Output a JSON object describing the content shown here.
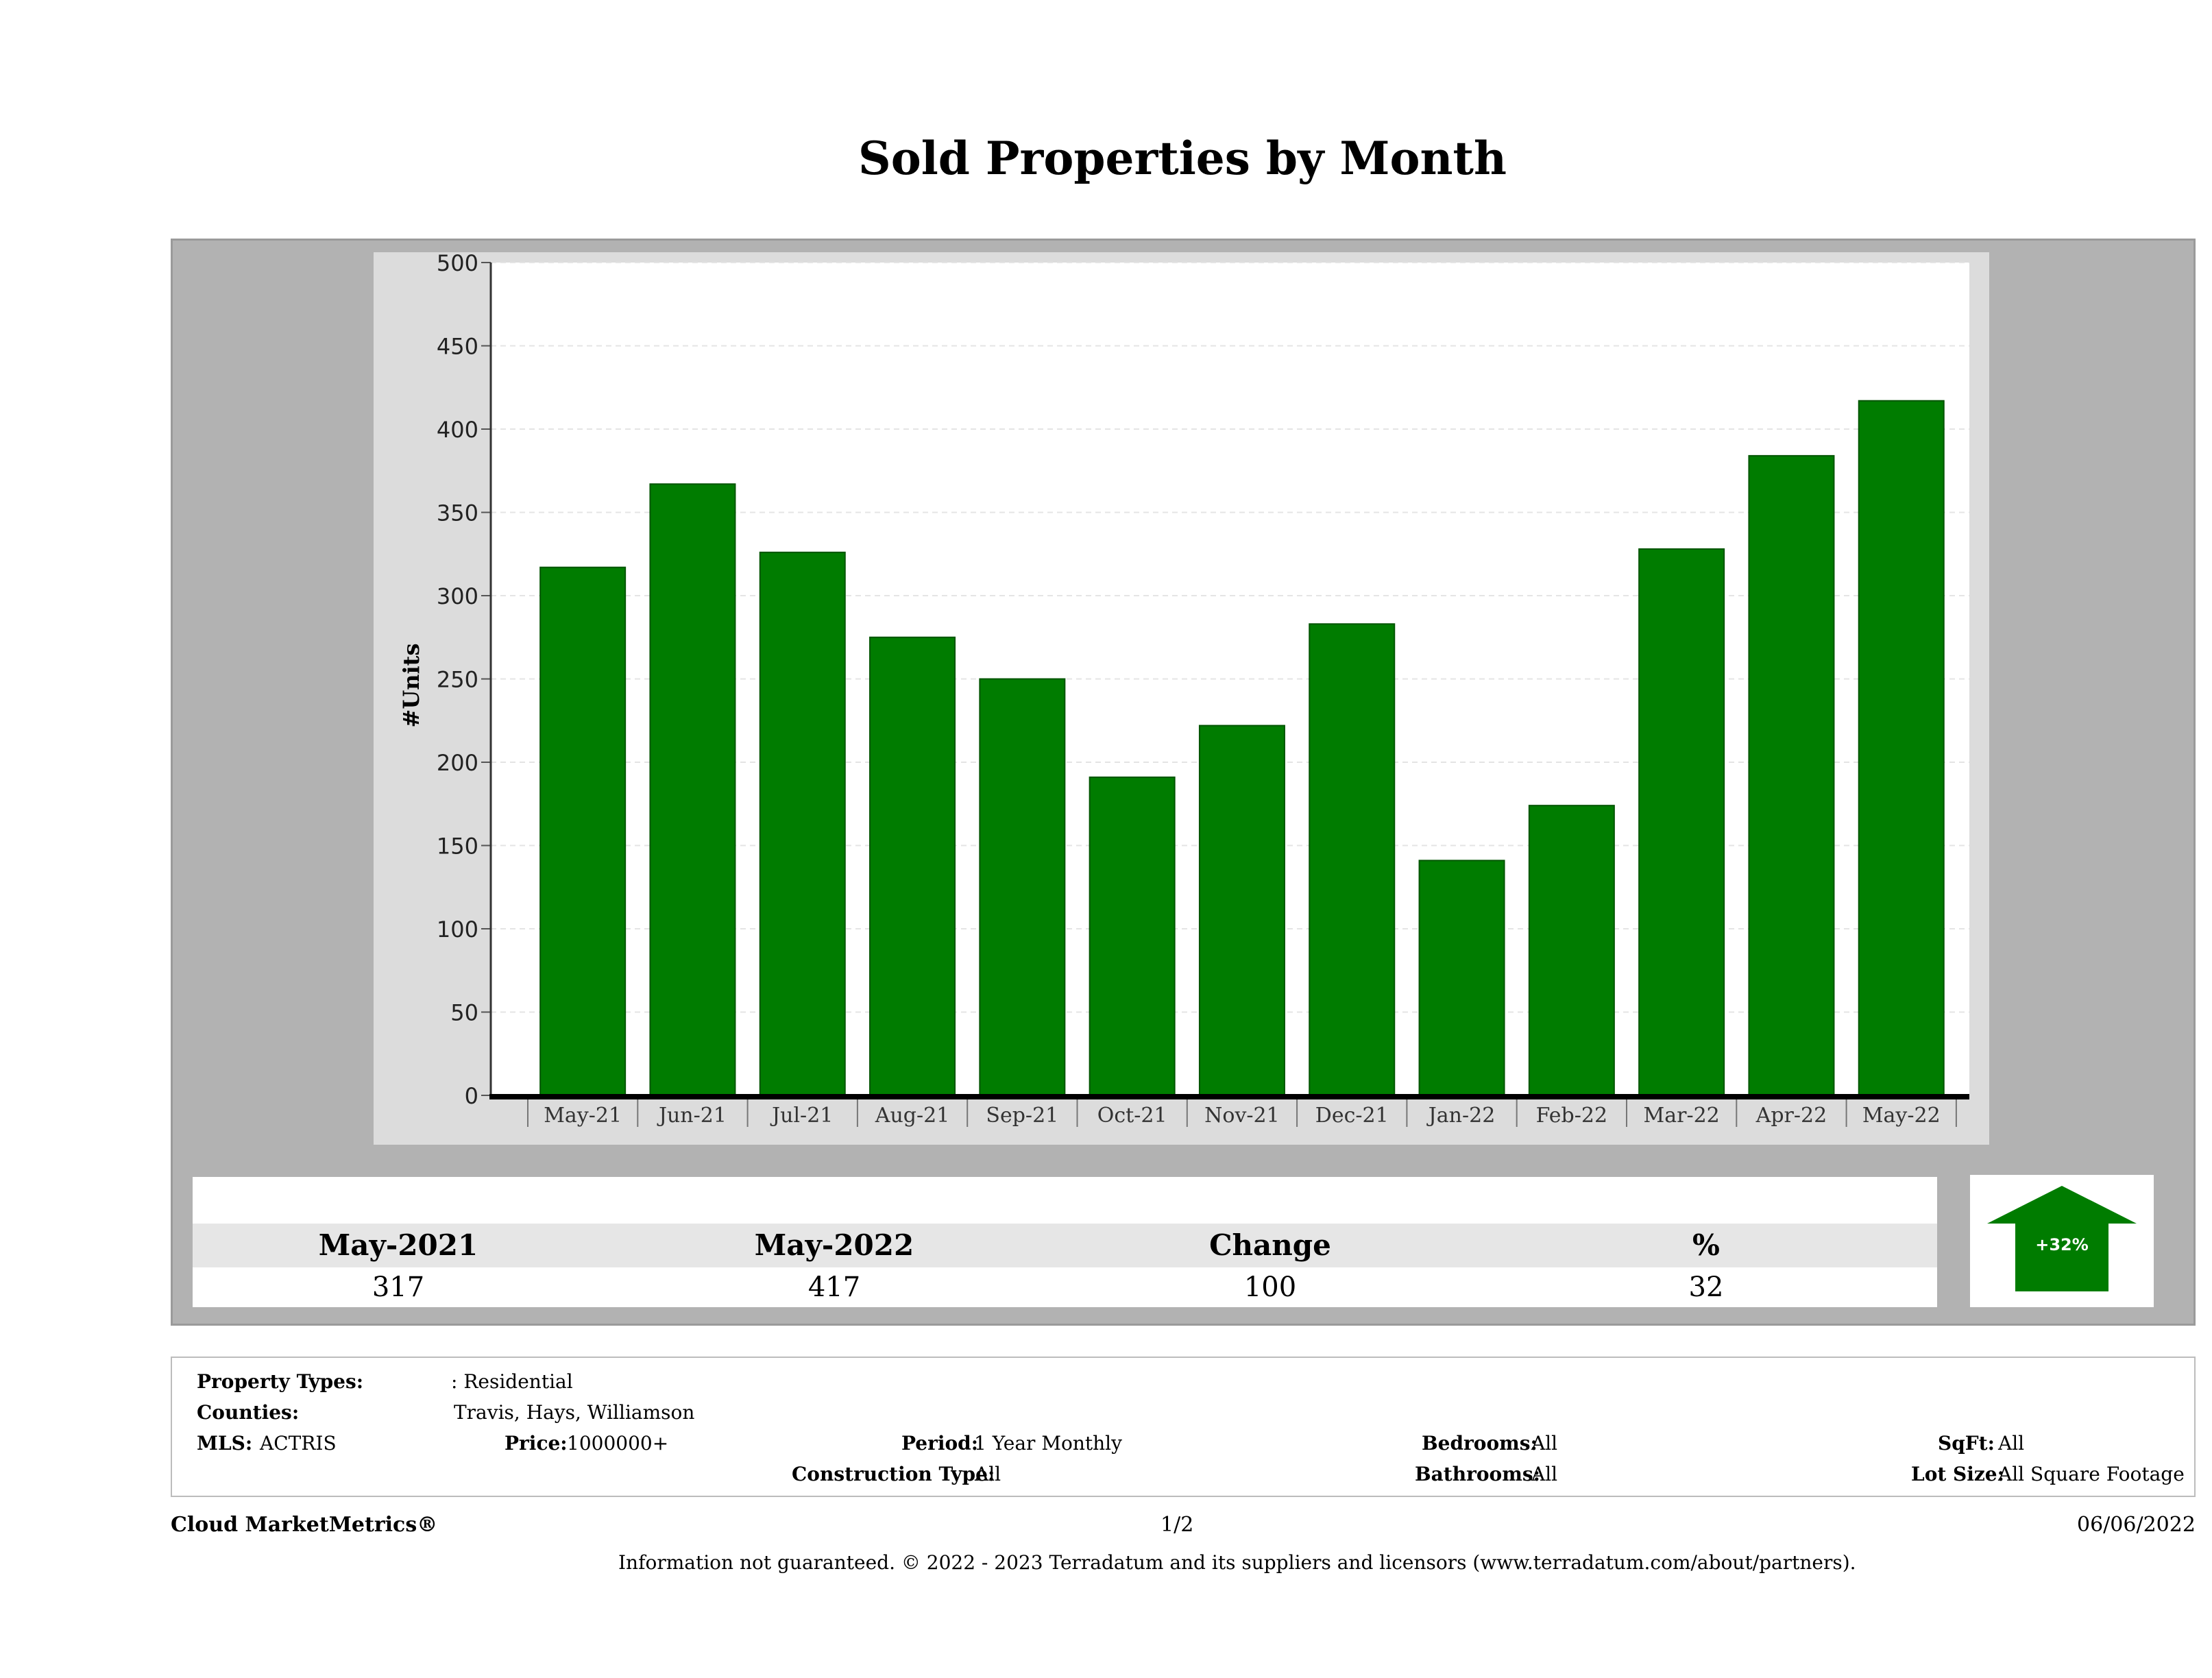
{
  "title": "Sold Properties by Month",
  "chart_data": {
    "type": "bar",
    "categories": [
      "May-21",
      "Jun-21",
      "Jul-21",
      "Aug-21",
      "Sep-21",
      "Oct-21",
      "Nov-21",
      "Dec-21",
      "Jan-22",
      "Feb-22",
      "Mar-22",
      "Apr-22",
      "May-22"
    ],
    "values": [
      317,
      367,
      326,
      275,
      250,
      191,
      222,
      283,
      141,
      174,
      328,
      384,
      417
    ],
    "ylabel": "#Units",
    "ylim": [
      0,
      500
    ],
    "yticks": [
      "0",
      "50",
      "100",
      "150",
      "200",
      "250",
      "300",
      "350",
      "400",
      "450",
      "500"
    ],
    "bar_color": "#007c00",
    "grid": true
  },
  "summary": {
    "headers": [
      "May-2021",
      "May-2022",
      "Change",
      "%"
    ],
    "values": [
      "317",
      "417",
      "100",
      "32"
    ],
    "badge": "+32%",
    "badge_color": "#007c00"
  },
  "filters": {
    "property_types_label": "Property Types:",
    "property_types_value": ": Residential",
    "counties_label": "Counties:",
    "counties_value": "Travis, Hays, Williamson",
    "mls_label": "MLS:",
    "mls_value": "ACTRIS",
    "price_label": "Price:",
    "price_value": "1000000+",
    "period_label": "Period:",
    "period_value": "1 Year Monthly",
    "construction_label": "Construction Type:",
    "construction_value": "All",
    "bedrooms_label": "Bedrooms:",
    "bedrooms_value": "All",
    "bathrooms_label": "Bathrooms:",
    "bathrooms_value": "All",
    "sqft_label": "SqFt:",
    "sqft_value": "All",
    "lotsize_label": "Lot Size:",
    "lotsize_value": "All Square Footage"
  },
  "footer": {
    "brand": "Cloud MarketMetrics®",
    "page": "1/2",
    "date": "06/06/2022",
    "disclaimer": "Information not guaranteed. © 2022 - 2023 Terradatum and its suppliers and licensors (www.terradatum.com/about/partners)."
  }
}
